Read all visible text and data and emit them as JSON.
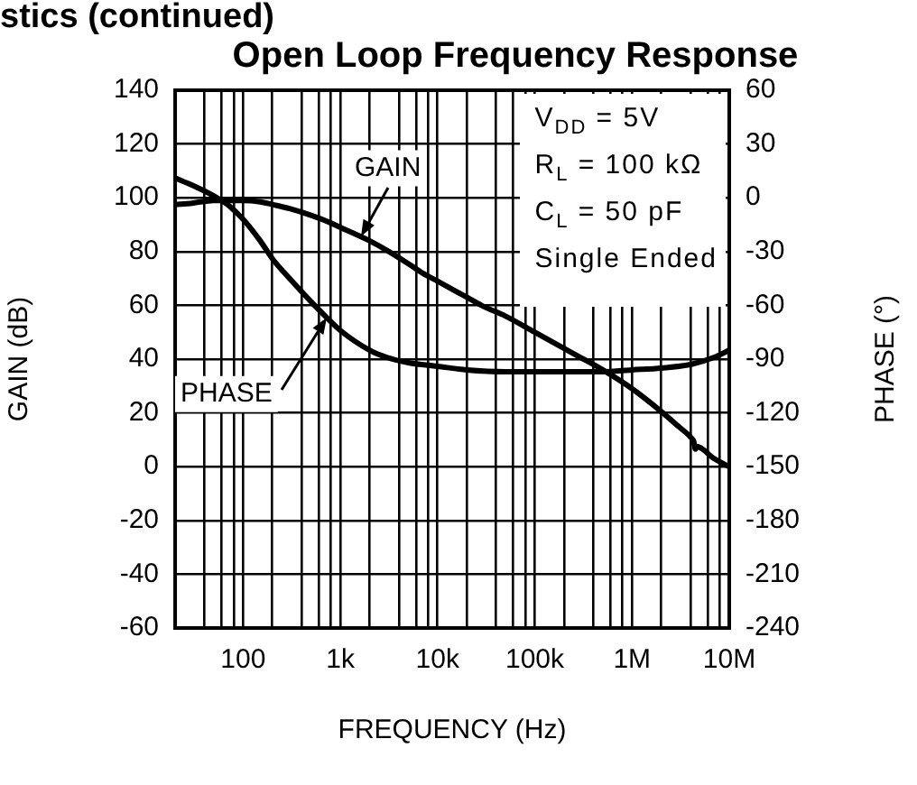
{
  "chart_data": {
    "type": "line",
    "title": "Open Loop Frequency Response",
    "xlabel": "FREQUENCY (Hz)",
    "ylabel": "GAIN (dB)",
    "y2label": "PHASE (°)",
    "annotations": [
      "stics (continued)",
      "V$_{DD}$ = 5V",
      "R$_{L}$ = 100 kΩ",
      "C$_{L}$ = 50 pF",
      "Single Ended"
    ],
    "log": "x",
    "xlim": [
      20,
      10000000
    ],
    "xticks": [
      {
        "value": 40,
        "label": null
      },
      {
        "value": 60,
        "label": null
      },
      {
        "value": 80,
        "label": null
      },
      100,
      {
        "value": 200,
        "label": null
      },
      {
        "value": 400,
        "label": null
      },
      {
        "value": 600,
        "label": null
      },
      {
        "value": 800,
        "label": null
      },
      {
        "value": 1000,
        "label": "1k"
      },
      {
        "value": 2000,
        "label": null
      },
      {
        "value": 4000,
        "label": null
      },
      {
        "value": 6000,
        "label": null
      },
      {
        "value": 8000,
        "label": null
      },
      {
        "value": 10000,
        "label": "10k"
      },
      {
        "value": 20000,
        "label": null
      },
      {
        "value": 40000,
        "label": null
      },
      {
        "value": 60000,
        "label": null
      },
      {
        "value": 80000,
        "label": null
      },
      {
        "value": 100000,
        "label": "100k"
      },
      {
        "value": 200000,
        "label": null
      },
      {
        "value": 400000,
        "label": null
      },
      {
        "value": 600000,
        "label": null
      },
      {
        "value": 800000,
        "label": null
      },
      {
        "value": 1000000,
        "label": "1M"
      },
      {
        "value": 2000000,
        "label": null
      },
      {
        "value": 4000000,
        "label": null
      },
      {
        "value": 6000000,
        "label": null
      },
      {
        "value": 8000000,
        "label": null
      },
      {
        "value": 10000000,
        "label": "10M"
      }
    ],
    "ylim": [
      -60,
      140
    ],
    "yticks": [
      -60,
      -40,
      -20,
      0,
      20,
      40,
      60,
      80,
      100,
      120,
      140
    ],
    "y2lim": [
      -240,
      60
    ],
    "y2ticks": [
      -240,
      -210,
      -180,
      -150,
      -120,
      -90,
      -60,
      -30,
      0,
      30,
      60
    ],
    "grid": true,
    "legend": false,
    "marker": "none",
    "series": [
      {
        "name": "GAIN",
        "color": "#000000",
        "x": [
          20,
          30,
          50,
          70,
          100,
          150,
          200,
          300,
          500,
          700,
          1000,
          2000,
          3000,
          5000,
          7000,
          10000,
          20000,
          30000,
          50000,
          100000,
          200000,
          300000,
          500000,
          1000000,
          2000000,
          3000000,
          4000000,
          4300000,
          4500000,
          4600000,
          7000000,
          10000000
        ],
        "values": [
          97.5,
          98,
          99,
          99,
          99,
          98.5,
          97.5,
          96,
          93.5,
          91.5,
          89,
          84,
          80.5,
          75.5,
          72,
          69,
          63,
          59.5,
          56,
          50,
          44,
          40.5,
          36,
          29,
          20.5,
          15,
          11,
          9.5,
          6.5,
          7.5,
          3,
          0
        ]
      },
      {
        "name": "PHASE",
        "color": "#000000",
        "axis": "y2",
        "x": [
          20,
          30,
          50,
          70,
          100,
          150,
          200,
          300,
          500,
          700,
          1000,
          2000,
          3000,
          5000,
          10000,
          20000,
          50000,
          100000,
          200000,
          500000,
          1000000,
          2000000,
          4000000,
          7000000,
          10000000
        ],
        "values": [
          11,
          7,
          1,
          -4,
          -12,
          -24,
          -34,
          -45,
          -58,
          -66,
          -74,
          -85,
          -89,
          -92,
          -94,
          -96,
          -97,
          -97,
          -97,
          -97,
          -96,
          -95,
          -93,
          -89,
          -85
        ]
      }
    ]
  }
}
